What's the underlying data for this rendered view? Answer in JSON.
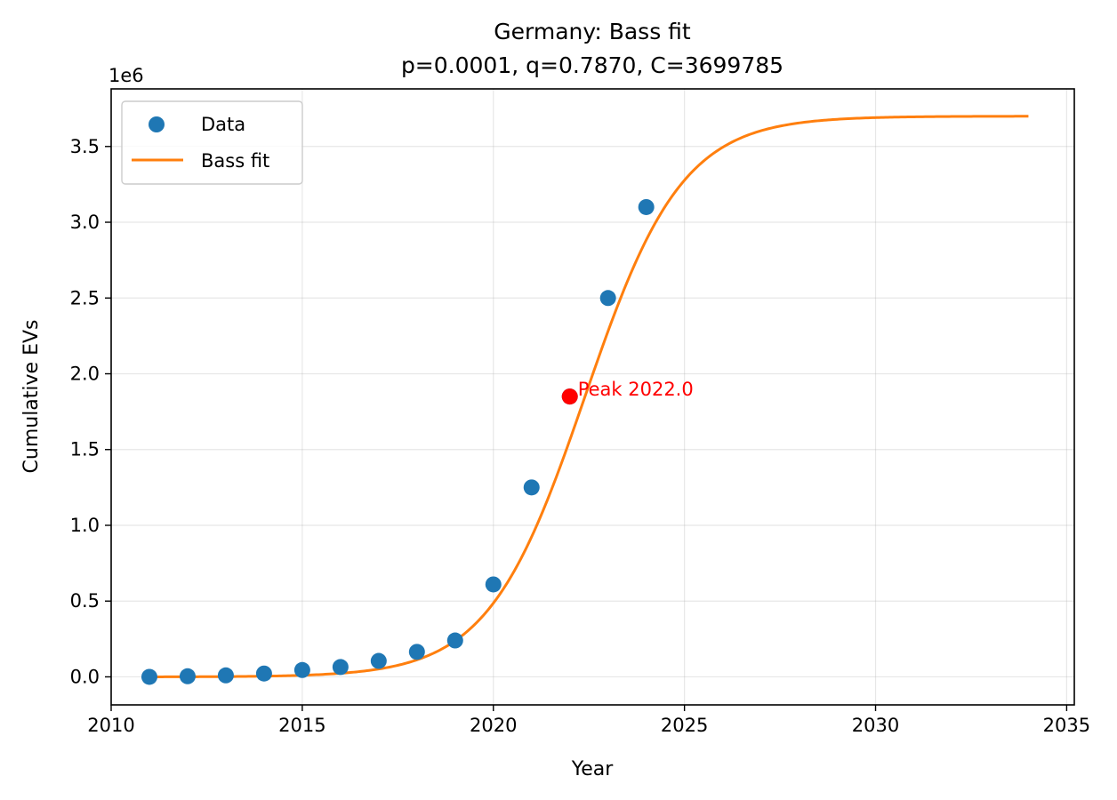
{
  "chart_data": {
    "type": "scatter",
    "title": "Germany: Bass fit",
    "subtitle": "p=0.0001, q=0.7870, C=3699785",
    "xlabel": "Year",
    "ylabel": "Cumulative EVs",
    "y_offset_label": "1e6",
    "xlim": [
      2010,
      2035.2
    ],
    "ylim": [
      -0.185,
      3.88
    ],
    "y_scale_factor": 1000000,
    "grid": true,
    "legend_position": "upper-left",
    "x_ticks": [
      {
        "value": 2010,
        "label": "2010"
      },
      {
        "value": 2015,
        "label": "2015"
      },
      {
        "value": 2020,
        "label": "2020"
      },
      {
        "value": 2025,
        "label": "2025"
      },
      {
        "value": 2030,
        "label": "2030"
      },
      {
        "value": 2035,
        "label": "2035"
      }
    ],
    "y_ticks": [
      {
        "value": 0.0,
        "label": "0.0"
      },
      {
        "value": 0.5,
        "label": "0.5"
      },
      {
        "value": 1.0,
        "label": "1.0"
      },
      {
        "value": 1.5,
        "label": "1.5"
      },
      {
        "value": 2.0,
        "label": "2.0"
      },
      {
        "value": 2.5,
        "label": "2.5"
      },
      {
        "value": 3.0,
        "label": "3.0"
      },
      {
        "value": 3.5,
        "label": "3.5"
      }
    ],
    "series": [
      {
        "name": "Data",
        "type": "scatter",
        "color": "#1f77b4",
        "x": [
          2011,
          2012,
          2013,
          2014,
          2015,
          2016,
          2017,
          2018,
          2019,
          2020,
          2021,
          2022,
          2023,
          2024
        ],
        "y": [
          0.0,
          0.004,
          0.01,
          0.022,
          0.045,
          0.065,
          0.105,
          0.165,
          0.24,
          0.61,
          1.25,
          1.85,
          2.5,
          3.1
        ]
      },
      {
        "name": "Bass fit",
        "type": "line",
        "color": "#ff7f0e",
        "model": {
          "p": 0.0001,
          "q": 0.787,
          "C": 3699785,
          "t0": 2011,
          "t_end": 2034
        }
      }
    ],
    "annotations": [
      {
        "text": "Peak 2022.0",
        "x": 2022.0,
        "y": 1.85,
        "color": "#ff0000"
      }
    ]
  }
}
